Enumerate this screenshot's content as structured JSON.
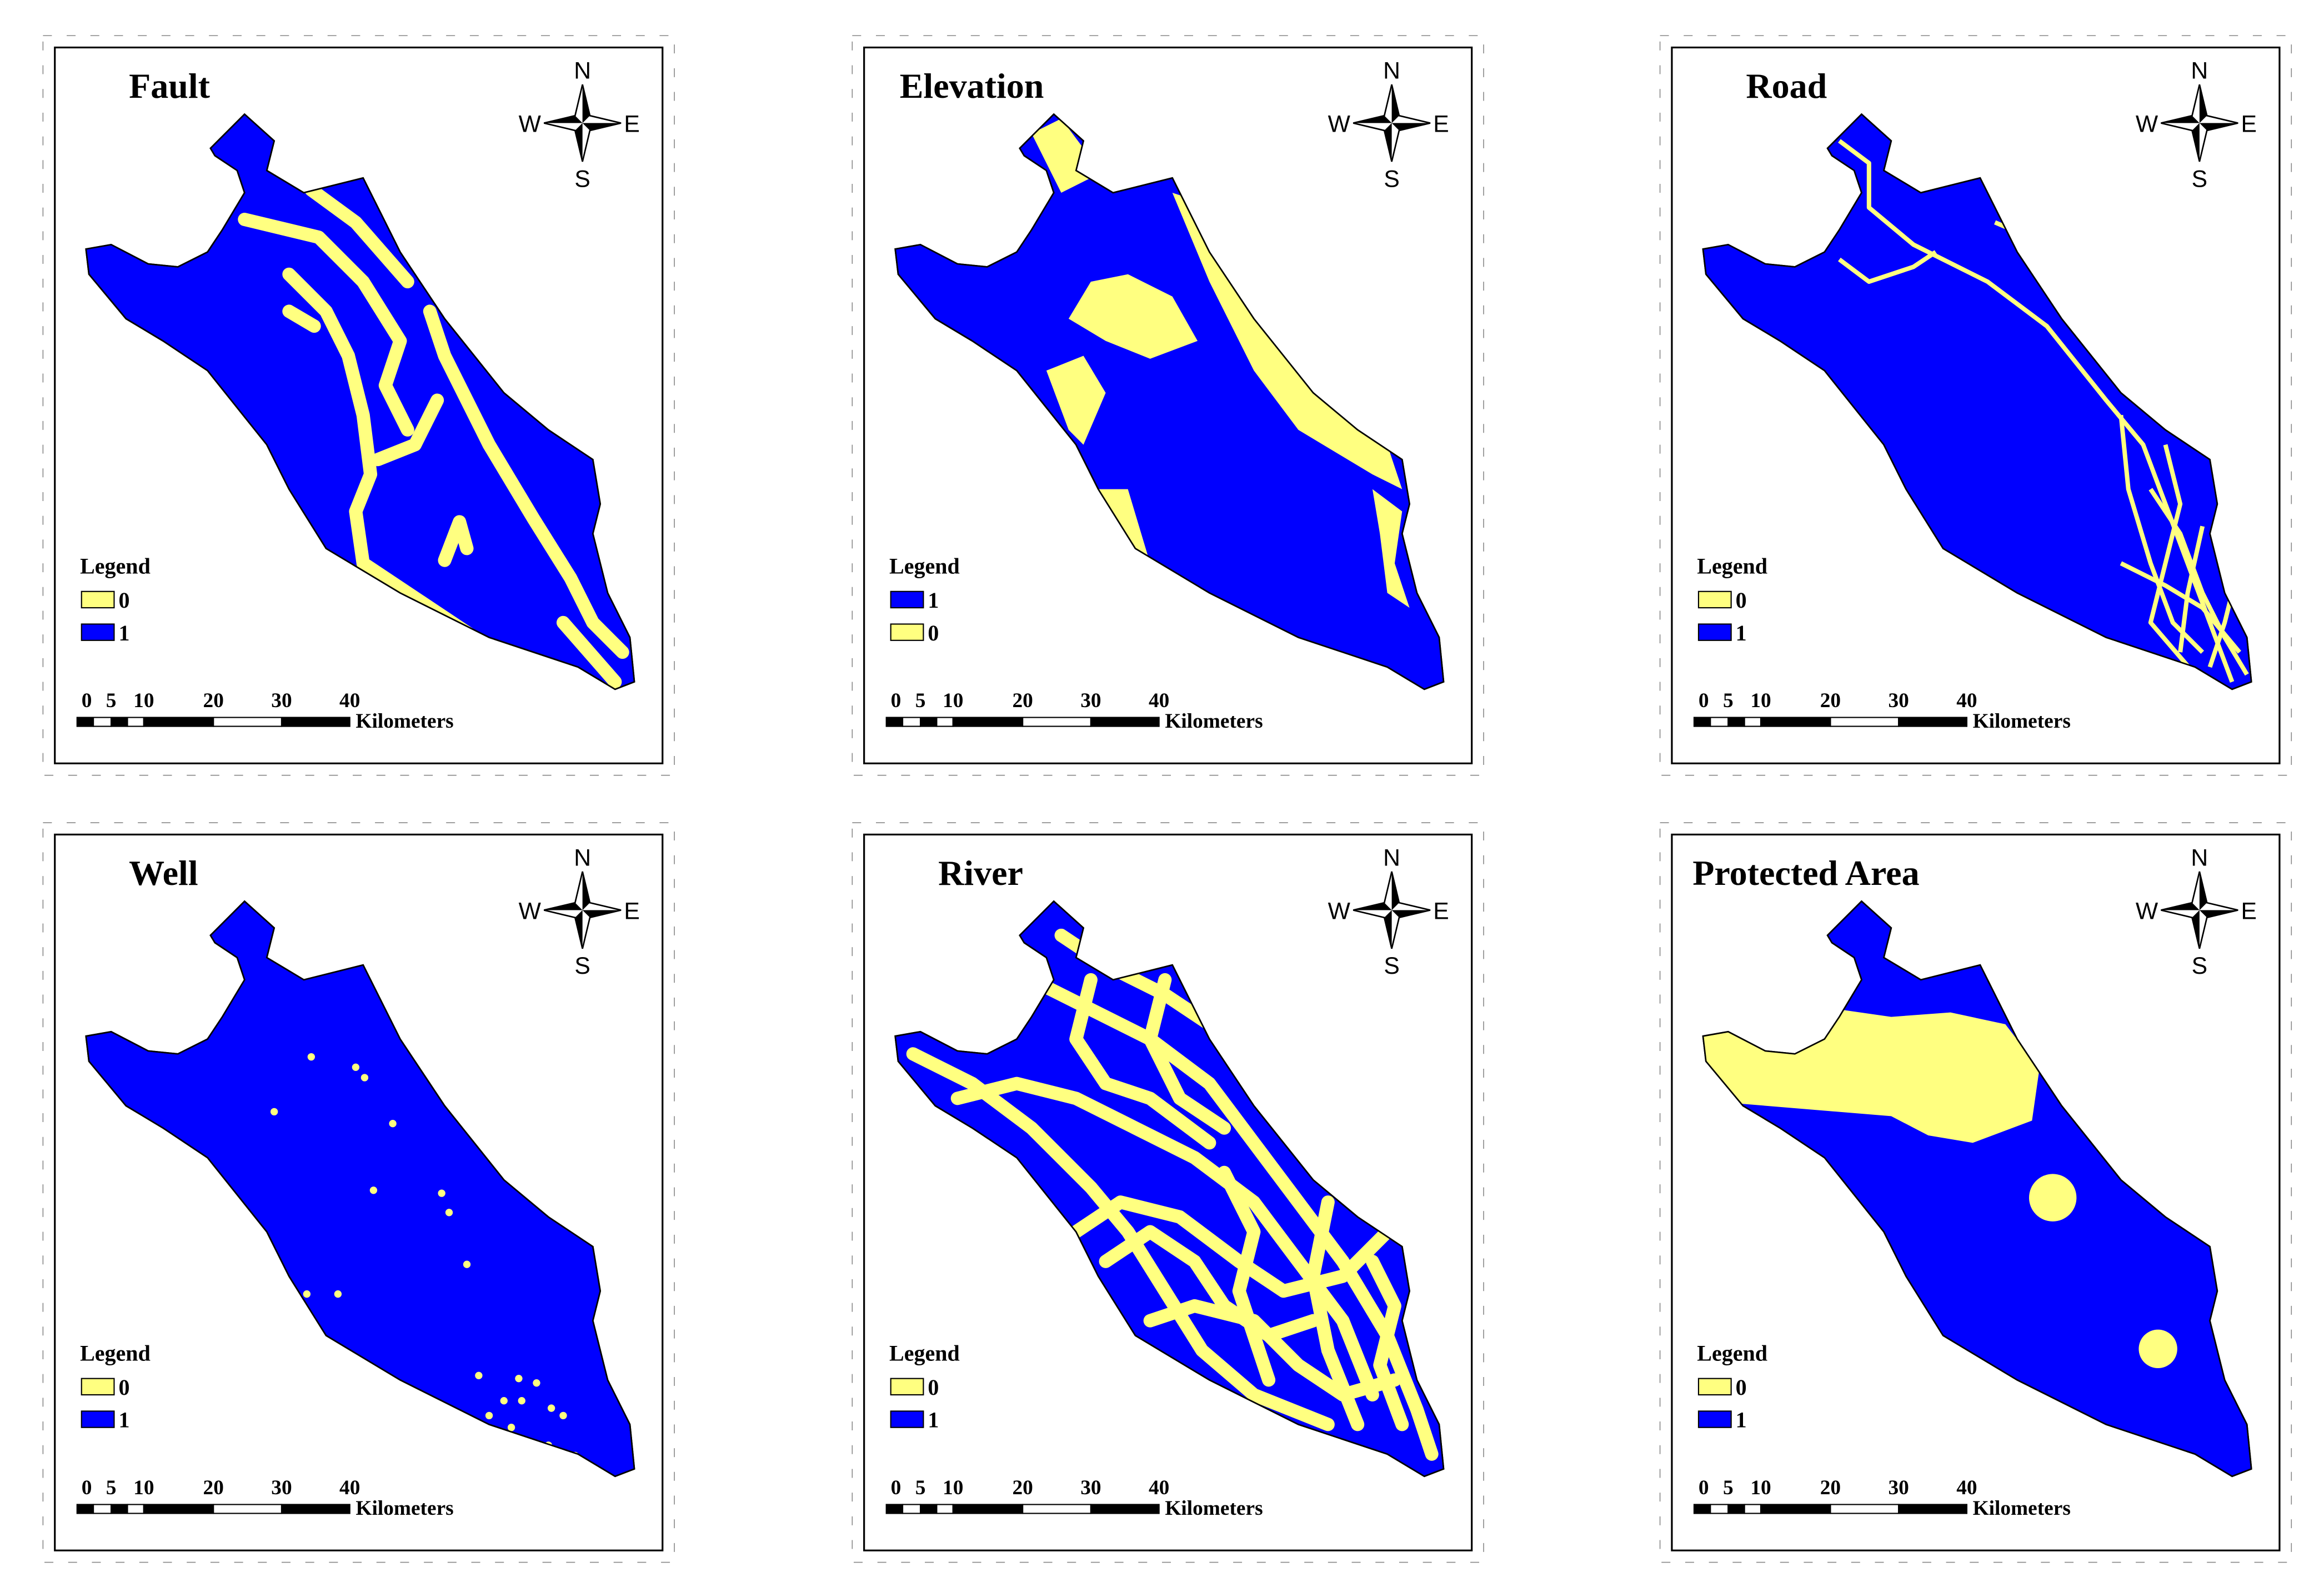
{
  "panels": [
    {
      "title": "Fault",
      "legend": [
        {
          "label": 0,
          "color": "#ffff80"
        },
        {
          "label": 1,
          "color": "#0000ff"
        }
      ]
    },
    {
      "title": "Elevation",
      "legend": [
        {
          "label": 1,
          "color": "#0000ff"
        },
        {
          "label": 0,
          "color": "#ffff80"
        }
      ]
    },
    {
      "title": "Road",
      "legend": [
        {
          "label": 0,
          "color": "#ffff80"
        },
        {
          "label": 1,
          "color": "#0000ff"
        }
      ]
    },
    {
      "title": "Well",
      "legend": [
        {
          "label": 0,
          "color": "#ffff80"
        },
        {
          "label": 1,
          "color": "#0000ff"
        }
      ]
    },
    {
      "title": "River",
      "legend": [
        {
          "label": 0,
          "color": "#ffff80"
        },
        {
          "label": 1,
          "color": "#0000ff"
        }
      ]
    },
    {
      "title": "Protected Area",
      "legend": [
        {
          "label": 0,
          "color": "#ffff80"
        },
        {
          "label": 1,
          "color": "#0000ff"
        }
      ]
    }
  ],
  "legend_title": "Legend",
  "compass": {
    "n": "N",
    "s": "S",
    "w": "W",
    "e": "E"
  },
  "scale_bar": {
    "labels": [
      0,
      5,
      10,
      20,
      30,
      40
    ],
    "unit": "Kilometers"
  }
}
